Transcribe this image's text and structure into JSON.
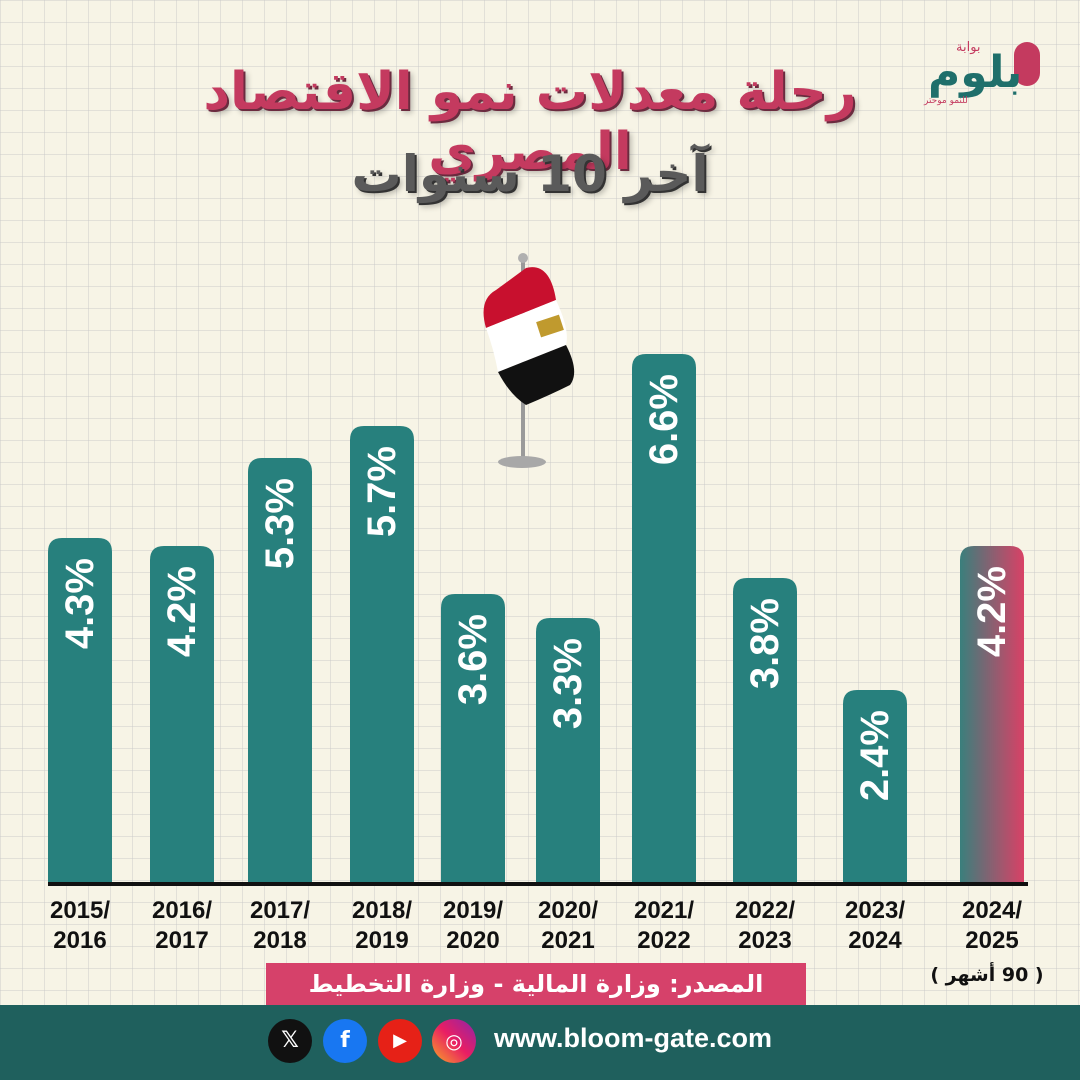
{
  "header": {
    "title_line1": "رحلة معدلات نمو الاقتصاد المصري",
    "title_line2": "آخر 10 سنوات"
  },
  "logo": {
    "brand": "بلوم",
    "prefix": "بوابة",
    "tagline": "للنمو موحتر"
  },
  "chart_data": {
    "type": "bar",
    "categories": [
      "2015/\n2016",
      "2016/\n2017",
      "2017/\n2018",
      "2018/\n2019",
      "2019/\n2020",
      "2020/\n2021",
      "2021/\n2022",
      "2022/\n2023",
      "2023/\n2024",
      "2024/\n2025"
    ],
    "values": [
      4.3,
      4.2,
      5.3,
      5.7,
      3.6,
      3.3,
      6.6,
      3.8,
      2.4,
      4.2
    ],
    "value_labels": [
      "4.3%",
      "4.2%",
      "5.3%",
      "5.7%",
      "3.6%",
      "3.3%",
      "6.6%",
      "3.8%",
      "2.4%",
      "4.2%"
    ],
    "ylim": [
      0,
      7.2
    ],
    "grid": false,
    "colors": {
      "bar": "#27807d",
      "highlight_top": "#3a7f7c",
      "highlight_bottom": "#d94166",
      "label": "#ffffff",
      "axis": "#111111"
    },
    "highlight_index": 9
  },
  "source": {
    "text": "المصدر: وزارة المالية - وزارة التخطيط",
    "note": "( 90 أشهر )"
  },
  "footer": {
    "website": "www.bloom-gate.com",
    "icons": [
      "x-icon",
      "facebook-icon",
      "youtube-icon",
      "instagram-icon"
    ]
  }
}
